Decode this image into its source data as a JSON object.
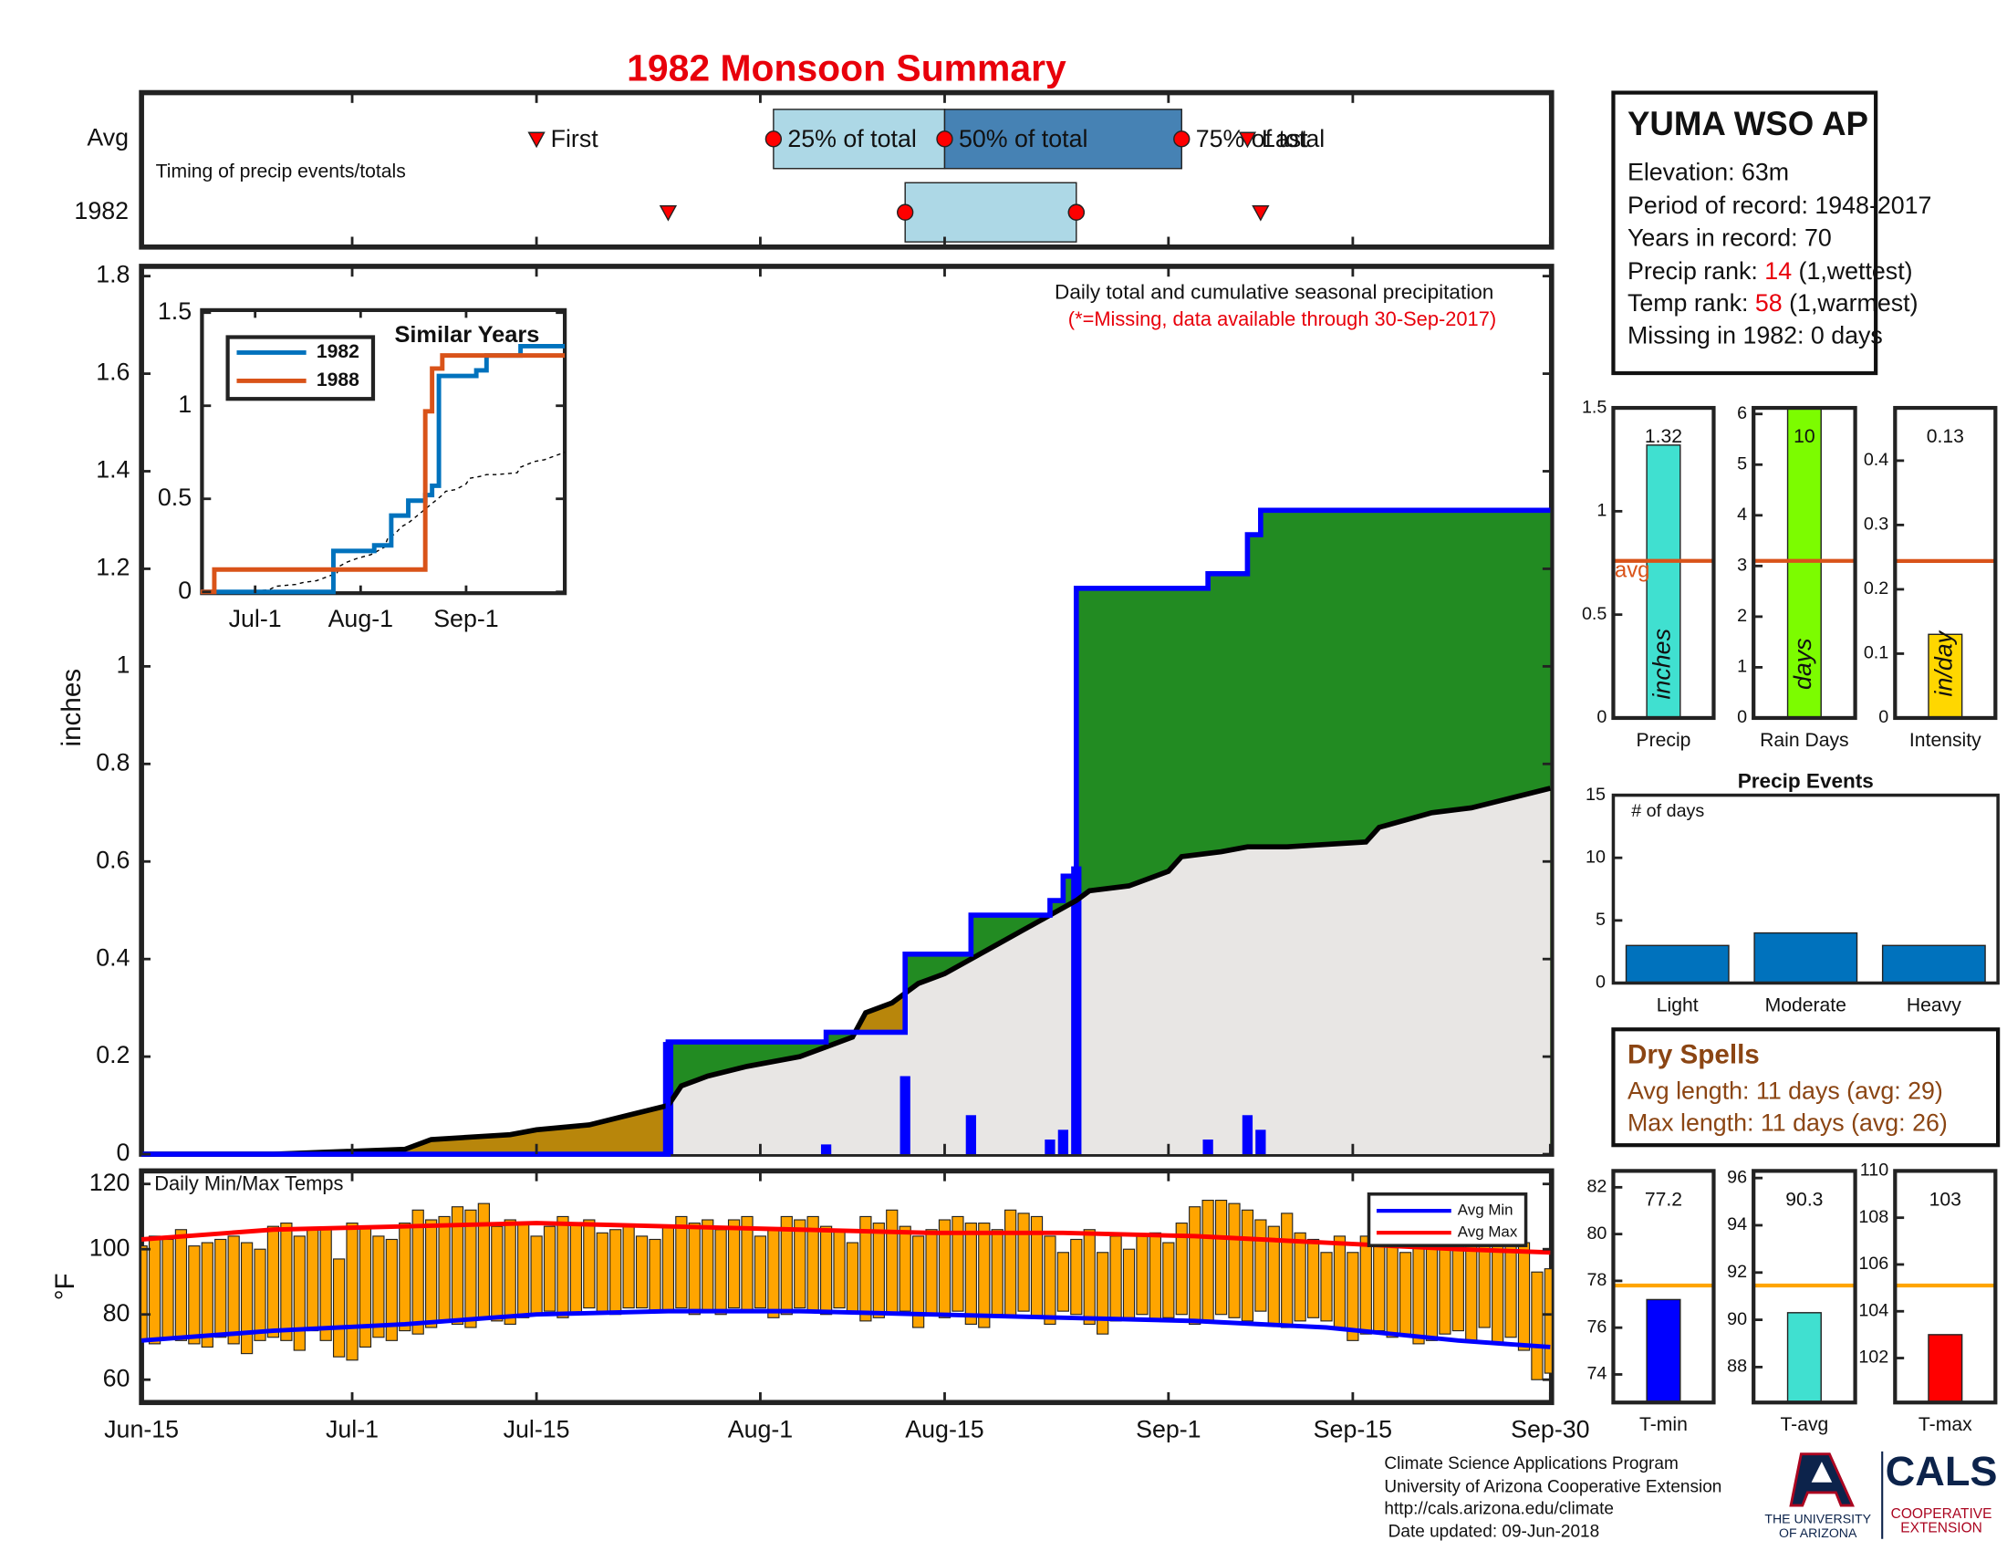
{
  "title": "1982 Monsoon Summary",
  "chart_data": [
    {
      "type": "timing",
      "caption": "Timing of precip events/totals",
      "categories": [
        "Avg",
        "1982"
      ],
      "markers": [
        "First",
        "25% of total",
        "50% of total",
        "75% of total",
        "Last"
      ],
      "rows": [
        [
          30,
          48,
          61,
          79,
          84
        ],
        [
          40,
          58,
          71,
          71,
          85
        ]
      ],
      "xlim": [
        0,
        107
      ],
      "box_colors": [
        "#add8e6",
        "#4682b4"
      ],
      "marker_color": "#ff0000"
    },
    {
      "type": "precip",
      "title": "Daily total and cumulative seasonal precipitation",
      "note": "(*=Missing, data available through 30-Sep-2017)",
      "ylabel": "inches",
      "xlim": [
        0,
        107
      ],
      "ylim": [
        0,
        1.82
      ],
      "yticks": [
        0,
        0.2,
        0.4,
        0.6,
        0.8,
        1,
        1.2,
        1.4,
        1.6,
        1.8
      ],
      "avg": {
        "color": "#000000",
        "x": [
          0,
          10,
          15,
          20,
          22,
          28,
          30,
          34,
          37,
          40,
          41,
          43,
          46,
          50,
          52,
          54,
          55,
          57,
          58,
          59,
          61,
          63,
          65,
          67,
          69,
          71,
          72,
          75,
          78,
          79,
          82,
          84,
          87,
          93,
          94,
          98,
          101,
          104,
          107
        ],
        "values": [
          0,
          0,
          0.005,
          0.01,
          0.03,
          0.04,
          0.05,
          0.06,
          0.08,
          0.1,
          0.14,
          0.16,
          0.18,
          0.2,
          0.22,
          0.24,
          0.29,
          0.31,
          0.33,
          0.35,
          0.37,
          0.4,
          0.43,
          0.46,
          0.49,
          0.52,
          0.54,
          0.55,
          0.58,
          0.61,
          0.62,
          0.63,
          0.63,
          0.64,
          0.67,
          0.7,
          0.71,
          0.73,
          0.75
        ]
      },
      "cumulative": {
        "color": "#0000ff",
        "x": [
          0,
          40,
          40,
          52,
          52,
          58,
          58,
          63,
          63,
          69,
          69,
          70,
          70,
          71,
          71,
          81,
          81,
          84,
          84,
          85,
          85,
          107
        ],
        "values": [
          0,
          0,
          0.23,
          0.23,
          0.25,
          0.25,
          0.41,
          0.41,
          0.49,
          0.49,
          0.52,
          0.52,
          0.57,
          0.57,
          1.16,
          1.16,
          1.19,
          1.19,
          1.27,
          1.27,
          1.32,
          1.32
        ]
      },
      "daily": {
        "color": "#0000ff",
        "x": [
          40,
          52,
          58,
          63,
          69,
          70,
          71,
          81,
          84,
          85
        ],
        "values": [
          0.23,
          0.02,
          0.16,
          0.08,
          0.03,
          0.05,
          0.59,
          0.03,
          0.08,
          0.05
        ]
      },
      "fill_colors": {
        "above": "#228b22",
        "below": "#b8860b",
        "base": "#e8e6e4"
      }
    },
    {
      "type": "similar",
      "title": "Similar Years",
      "xlim": [
        0,
        107
      ],
      "ylim": [
        0,
        1.5
      ],
      "yticks": [
        0,
        0.5,
        1,
        1.5
      ],
      "xticks": [
        {
          "value": 16,
          "label": "Jul-1"
        },
        {
          "value": 47,
          "label": "Aug-1"
        },
        {
          "value": 78,
          "label": "Sep-1"
        }
      ],
      "series": [
        {
          "name": "1982",
          "color": "#0072bd",
          "x": [
            0,
            39,
            39,
            51,
            51,
            56,
            56,
            61,
            61,
            66,
            66,
            68,
            68,
            70,
            70,
            81,
            81,
            84,
            84,
            94,
            94,
            107
          ],
          "values": [
            0,
            0,
            0.22,
            0.22,
            0.25,
            0.25,
            0.41,
            0.41,
            0.49,
            0.49,
            0.52,
            0.52,
            0.57,
            0.57,
            1.16,
            1.16,
            1.19,
            1.19,
            1.27,
            1.27,
            1.32,
            1.32
          ]
        },
        {
          "name": "1988",
          "color": "#d95319",
          "x": [
            0,
            4,
            4,
            66,
            66,
            68,
            68,
            71,
            71,
            107
          ],
          "values": [
            0,
            0,
            0.12,
            0.12,
            0.97,
            0.97,
            1.2,
            1.2,
            1.27,
            1.27
          ]
        }
      ]
    },
    {
      "type": "temperature",
      "title": "Daily Min/Max Temps",
      "ylabel": "°F",
      "xlim": [
        0,
        107
      ],
      "ylim": [
        53,
        124
      ],
      "yticks": [
        60,
        80,
        100,
        120
      ],
      "xticks": [
        {
          "value": 0,
          "label": "Jun-15"
        },
        {
          "value": 16,
          "label": "Jul-1"
        },
        {
          "value": 30,
          "label": "Jul-15"
        },
        {
          "value": 47,
          "label": "Aug-1"
        },
        {
          "value": 61,
          "label": "Aug-15"
        },
        {
          "value": 78,
          "label": "Sep-1"
        },
        {
          "value": 92,
          "label": "Sep-15"
        },
        {
          "value": 107,
          "label": "Sep-30"
        }
      ],
      "bar_color": "#ffa500",
      "days": [
        0,
        1,
        2,
        3,
        4,
        5,
        6,
        7,
        8,
        9,
        10,
        11,
        12,
        13,
        14,
        15,
        16,
        17,
        18,
        19,
        20,
        21,
        22,
        23,
        24,
        25,
        26,
        27,
        28,
        29,
        30,
        31,
        32,
        33,
        34,
        35,
        36,
        37,
        38,
        39,
        40,
        41,
        42,
        43,
        44,
        45,
        46,
        47,
        48,
        49,
        50,
        51,
        52,
        53,
        54,
        55,
        56,
        57,
        58,
        59,
        60,
        61,
        62,
        63,
        64,
        65,
        66,
        67,
        68,
        69,
        70,
        71,
        72,
        73,
        74,
        75,
        76,
        77,
        78,
        79,
        80,
        81,
        82,
        83,
        84,
        85,
        86,
        87,
        88,
        89,
        90,
        91,
        92,
        93,
        94,
        95,
        96,
        97,
        98,
        99,
        100,
        101,
        102,
        103,
        104,
        105,
        106,
        107
      ],
      "tmax": [
        101,
        104,
        103,
        106,
        101,
        102,
        103,
        104,
        102,
        100,
        107,
        108,
        104,
        106,
        106,
        97,
        108,
        107,
        104,
        103,
        108,
        112,
        109,
        110,
        113,
        112,
        114,
        107,
        109,
        108,
        104,
        107,
        110,
        108,
        109,
        105,
        106,
        107,
        104,
        103,
        107,
        110,
        108,
        109,
        106,
        109,
        110,
        104,
        106,
        110,
        109,
        110,
        107,
        106,
        102,
        110,
        108,
        112,
        107,
        104,
        106,
        109,
        110,
        108,
        108,
        106,
        112,
        111,
        110,
        104,
        99,
        103,
        106,
        99,
        104,
        100,
        104,
        105,
        102,
        108,
        113,
        115,
        115,
        114,
        112,
        109,
        107,
        111,
        105,
        103,
        99,
        104,
        99,
        104,
        106,
        104,
        99,
        104,
        100,
        107,
        109,
        108,
        107,
        106,
        105,
        102,
        93,
        94
      ],
      "tmin": [
        72,
        71,
        73,
        72,
        71,
        70,
        73,
        71,
        68,
        72,
        73,
        72,
        69,
        75,
        72,
        67,
        66,
        70,
        73,
        72,
        75,
        74,
        76,
        78,
        77,
        76,
        79,
        78,
        77,
        79,
        80,
        81,
        79,
        80,
        82,
        81,
        80,
        82,
        82,
        81,
        81,
        82,
        80,
        81,
        80,
        82,
        81,
        82,
        79,
        80,
        82,
        81,
        80,
        82,
        81,
        78,
        79,
        80,
        81,
        76,
        80,
        79,
        81,
        77,
        76,
        80,
        79,
        81,
        79,
        77,
        81,
        80,
        77,
        74,
        78,
        79,
        80,
        78,
        79,
        80,
        77,
        78,
        80,
        79,
        78,
        81,
        77,
        76,
        78,
        79,
        78,
        76,
        72,
        74,
        75,
        73,
        74,
        71,
        72,
        74,
        75,
        72,
        76,
        71,
        73,
        69,
        60,
        62
      ],
      "series": [
        {
          "name": "Avg Min",
          "color": "#0000ff",
          "x": [
            0,
            10,
            20,
            30,
            40,
            50,
            60,
            70,
            80,
            90,
            100,
            107
          ],
          "values": [
            72,
            75,
            77,
            80,
            81,
            81,
            80,
            79,
            78,
            76,
            72,
            70
          ]
        },
        {
          "name": "Avg Max",
          "color": "#ff0000",
          "x": [
            0,
            10,
            20,
            30,
            40,
            50,
            60,
            70,
            80,
            90,
            100,
            107
          ],
          "values": [
            103,
            106,
            107,
            108,
            107,
            106,
            105,
            105,
            104,
            102,
            100,
            99
          ]
        }
      ]
    },
    {
      "type": "summary-bar",
      "xlabel": "Precip",
      "value": 1.32,
      "avg": 0.76,
      "avg_label": "avg",
      "unit": "inches",
      "color": "#40e0d0",
      "avg_color": "#d95319",
      "ylim": [
        0,
        1.5
      ],
      "yticks": [
        0,
        0.5,
        1,
        1.5
      ]
    },
    {
      "type": "summary-bar",
      "xlabel": "Rain Days",
      "value": 10,
      "avg": 3.1,
      "unit": "days",
      "color": "#7cfc00",
      "avg_color": "#d95319",
      "ylim": [
        0,
        6.12
      ],
      "yticks": [
        0,
        1,
        2,
        3,
        4,
        5,
        6
      ]
    },
    {
      "type": "summary-bar",
      "xlabel": "Intensity",
      "value": 0.13,
      "avg": 0.244,
      "unit": "in/day",
      "color": "#ffd700",
      "avg_color": "#d95319",
      "ylim": [
        0,
        0.482
      ],
      "yticks": [
        0,
        0.1,
        0.2,
        0.3,
        0.4
      ]
    },
    {
      "type": "events",
      "title": "Precip Events",
      "caption": "# of days",
      "categories": [
        "Light",
        "Moderate",
        "Heavy"
      ],
      "values": [
        3,
        4,
        3
      ],
      "color": "#0072bd",
      "ylim": [
        0,
        15
      ],
      "yticks": [
        0,
        5,
        10,
        15
      ]
    },
    {
      "type": "summary-bar",
      "xlabel": "T-min",
      "value": 77.2,
      "avg": 77.8,
      "color": "#0000ff",
      "avg_color": "#ffa500",
      "ylim": [
        72.8,
        82.7
      ],
      "yticks": [
        74,
        76,
        78,
        80,
        82
      ]
    },
    {
      "type": "summary-bar",
      "xlabel": "T-avg",
      "value": 90.3,
      "avg": 91.45,
      "color": "#40e0d0",
      "avg_color": "#ffa500",
      "ylim": [
        86.5,
        96.3
      ],
      "yticks": [
        88,
        90,
        92,
        94,
        96
      ]
    },
    {
      "type": "summary-bar",
      "xlabel": "T-max",
      "value": 103,
      "avg": 105.1,
      "color": "#ff0000",
      "avg_color": "#ffa500",
      "ylim": [
        100.1,
        110
      ],
      "yticks": [
        102,
        104,
        106,
        108,
        110
      ]
    }
  ],
  "station": {
    "name": "YUMA WSO AP",
    "lines": [
      "Elevation: 63m",
      "Period of record: 1948-2017",
      "Years in record: 70"
    ],
    "precip_rank": {
      "label": "Precip rank:",
      "value": 14,
      "note": "(1,wettest)"
    },
    "temp_rank": {
      "label": "Temp rank:",
      "value": 58,
      "note": "(1,warmest)"
    },
    "missing": "Missing in 1982: 0 days"
  },
  "dry_spells": {
    "title": "Dry Spells",
    "lines": [
      "Avg length: 11 days (avg: 29)",
      "Max length: 11 days (avg: 26)"
    ]
  },
  "footer": [
    "Climate Science Applications Program",
    "University of Arizona Cooperative Extension",
    "http://cals.arizona.edu/climate",
    "Date updated: 09-Jun-2018"
  ],
  "logos": {
    "university": [
      "THE UNIVERSITY",
      "OF ARIZONA"
    ],
    "college": "CALS",
    "extension": [
      "COOPERATIVE",
      "EXTENSION"
    ]
  }
}
